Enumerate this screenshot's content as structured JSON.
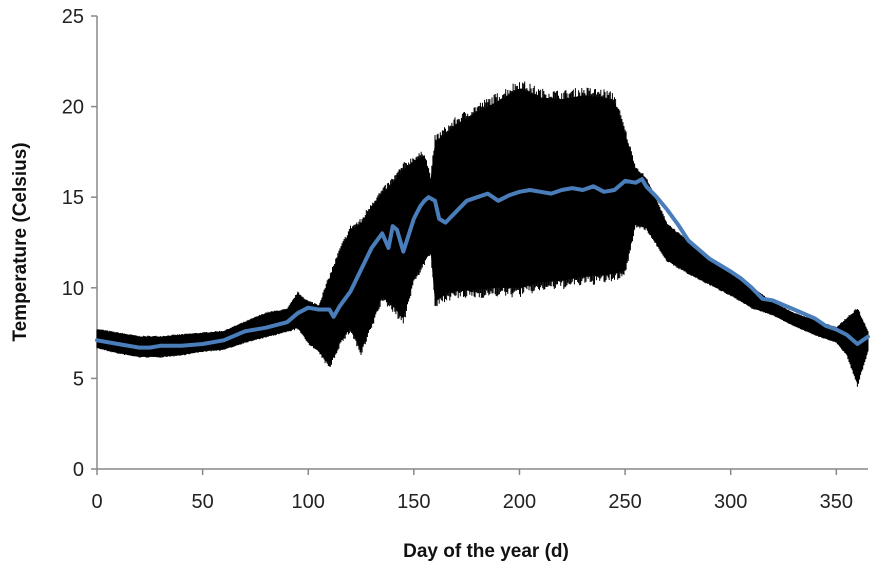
{
  "chart_data": {
    "type": "line",
    "title": "",
    "xlabel": "Day of the year (d)",
    "ylabel": "Temperature (Celsius)",
    "xlim": [
      0,
      365
    ],
    "ylim": [
      0,
      25
    ],
    "x_ticks": [
      0,
      50,
      100,
      150,
      200,
      250,
      300,
      350
    ],
    "y_ticks": [
      0,
      5,
      10,
      15,
      20,
      25
    ],
    "grid": false,
    "legend": "none",
    "series": [
      {
        "kind": "band",
        "color": "#000000",
        "x": [
          0,
          10,
          20,
          30,
          40,
          50,
          60,
          70,
          80,
          90,
          95,
          100,
          105,
          110,
          115,
          120,
          125,
          130,
          135,
          140,
          145,
          150,
          155,
          158,
          160,
          165,
          170,
          180,
          190,
          200,
          210,
          220,
          230,
          240,
          245,
          250,
          255,
          260,
          270,
          280,
          290,
          300,
          310,
          320,
          330,
          340,
          350,
          355,
          360,
          365
        ],
        "low": [
          6.7,
          6.4,
          6.2,
          6.2,
          6.3,
          6.5,
          6.6,
          7.0,
          7.3,
          7.6,
          7.8,
          7.0,
          6.5,
          5.7,
          7.0,
          7.8,
          6.5,
          8.0,
          9.5,
          9.0,
          8.3,
          10.5,
          11.5,
          12.0,
          9.2,
          9.7,
          9.8,
          9.9,
          10.0,
          10.0,
          10.3,
          10.4,
          10.6,
          10.7,
          10.8,
          11.0,
          13.5,
          13.3,
          11.5,
          10.8,
          10.2,
          9.6,
          8.9,
          8.5,
          7.9,
          7.4,
          7.0,
          6.3,
          4.7,
          6.5
        ],
        "high": [
          7.7,
          7.5,
          7.3,
          7.3,
          7.4,
          7.5,
          7.6,
          8.1,
          8.6,
          8.8,
          9.7,
          9.2,
          9.0,
          10.5,
          12.0,
          13.2,
          13.5,
          14.5,
          15.2,
          15.8,
          16.5,
          17.0,
          17.3,
          16.0,
          18.0,
          18.5,
          19.0,
          19.7,
          20.3,
          21.0,
          20.5,
          20.4,
          20.6,
          20.5,
          20.3,
          18.5,
          16.6,
          16.0,
          13.5,
          12.5,
          11.6,
          10.8,
          10.0,
          9.2,
          8.6,
          8.2,
          7.8,
          8.3,
          8.8,
          7.6
        ]
      },
      {
        "kind": "line",
        "color": "#4a7ebb",
        "x": [
          0,
          10,
          20,
          25,
          30,
          40,
          50,
          60,
          70,
          80,
          90,
          95,
          100,
          105,
          110,
          112,
          115,
          120,
          125,
          130,
          135,
          138,
          140,
          142,
          145,
          150,
          153,
          155,
          157,
          160,
          162,
          165,
          170,
          175,
          180,
          185,
          190,
          195,
          200,
          205,
          210,
          215,
          220,
          225,
          230,
          235,
          240,
          245,
          250,
          255,
          258,
          260,
          265,
          270,
          275,
          280,
          290,
          300,
          305,
          310,
          315,
          320,
          330,
          340,
          345,
          350,
          355,
          360,
          365
        ],
        "y": [
          7.1,
          6.9,
          6.7,
          6.7,
          6.8,
          6.8,
          6.9,
          7.1,
          7.6,
          7.8,
          8.1,
          8.6,
          8.9,
          8.8,
          8.8,
          8.4,
          9.0,
          9.8,
          11.0,
          12.2,
          13.0,
          12.2,
          13.4,
          13.2,
          12.0,
          13.8,
          14.5,
          14.8,
          15.0,
          14.8,
          13.8,
          13.6,
          14.2,
          14.8,
          15.0,
          15.2,
          14.8,
          15.1,
          15.3,
          15.4,
          15.3,
          15.2,
          15.4,
          15.5,
          15.4,
          15.6,
          15.3,
          15.4,
          15.9,
          15.8,
          16.0,
          15.6,
          15.0,
          14.3,
          13.5,
          12.6,
          11.6,
          10.9,
          10.5,
          10.0,
          9.4,
          9.3,
          8.8,
          8.3,
          7.9,
          7.7,
          7.4,
          6.9,
          7.3
        ]
      }
    ]
  }
}
